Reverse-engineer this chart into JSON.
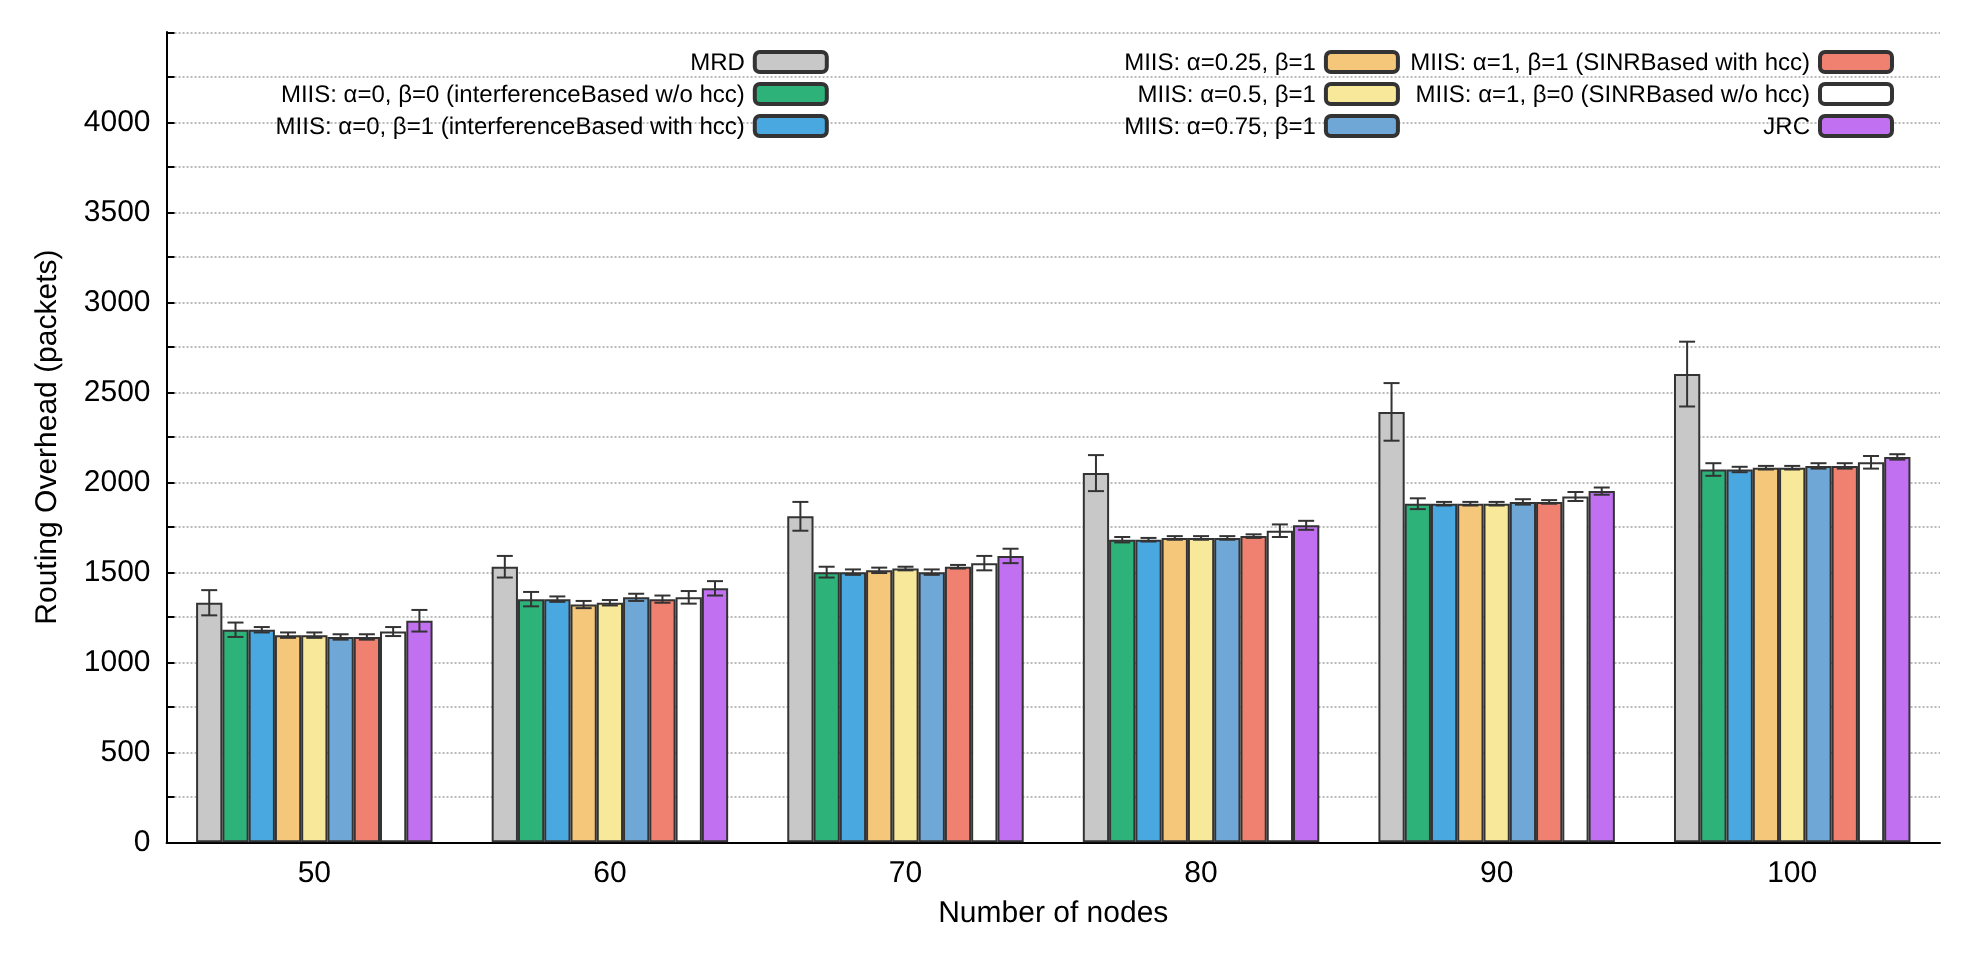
{
  "chart_data": {
    "type": "bar",
    "xlabel": "Number of nodes",
    "ylabel": "Routing Overhead (packets)",
    "categories": [
      "50",
      "60",
      "70",
      "80",
      "90",
      "100"
    ],
    "ylim": [
      0,
      4500
    ],
    "yticks": [
      0,
      {
        "value": 250,
        "label": null
      },
      500,
      {
        "value": 750,
        "label": null
      },
      1000,
      {
        "value": 1250,
        "label": null
      },
      1500,
      {
        "value": 1750,
        "label": null
      },
      2000,
      {
        "value": 2250,
        "label": null
      },
      2500,
      {
        "value": 2750,
        "label": null
      },
      3000,
      {
        "value": 3250,
        "label": null
      },
      3500,
      {
        "value": 3750,
        "label": null
      },
      4000,
      {
        "value": 4250,
        "label": null
      },
      {
        "value": 4500,
        "label": null
      }
    ],
    "grid": "y",
    "legend": "top",
    "series": [
      {
        "name": "MRD",
        "color": "#c8c8c8",
        "values": [
          1330,
          1530,
          1810,
          2050,
          2390,
          2600
        ],
        "errors": [
          70,
          60,
          80,
          100,
          160,
          180
        ]
      },
      {
        "name": "MIIS: α=0, β=0 (interferenceBased w/o hcc)",
        "color": "#2db37a",
        "values": [
          1180,
          1350,
          1500,
          1680,
          1880,
          2070
        ],
        "errors": [
          40,
          40,
          30,
          15,
          30,
          35
        ]
      },
      {
        "name": "MIIS: α=0, β=1 (interferenceBased with hcc)",
        "color": "#4aa8e0",
        "values": [
          1180,
          1350,
          1500,
          1680,
          1880,
          2070
        ],
        "errors": [
          15,
          15,
          15,
          10,
          10,
          15
        ]
      },
      {
        "name": "MIIS: α=0.25, β=1",
        "color": "#f5c77a",
        "values": [
          1150,
          1320,
          1510,
          1690,
          1880,
          2080
        ],
        "errors": [
          15,
          20,
          15,
          10,
          10,
          10
        ]
      },
      {
        "name": "MIIS: α=0.5, β=1",
        "color": "#f7e89a",
        "values": [
          1150,
          1330,
          1520,
          1690,
          1880,
          2080
        ],
        "errors": [
          15,
          15,
          10,
          10,
          10,
          10
        ]
      },
      {
        "name": "MIIS: α=0.75, β=1",
        "color": "#6fa8d6",
        "values": [
          1140,
          1360,
          1500,
          1690,
          1890,
          2090
        ],
        "errors": [
          15,
          20,
          15,
          10,
          15,
          15
        ]
      },
      {
        "name": "MIIS: α=1, β=1 (SINRBased with hcc)",
        "color": "#f08070",
        "values": [
          1140,
          1350,
          1530,
          1700,
          1890,
          2090
        ],
        "errors": [
          15,
          20,
          10,
          10,
          10,
          15
        ]
      },
      {
        "name": "MIIS: α=1, β=0 (SINRBased w/o hcc)",
        "color": "#ffffff",
        "values": [
          1170,
          1360,
          1550,
          1730,
          1920,
          2110
        ],
        "errors": [
          25,
          35,
          40,
          35,
          25,
          35
        ]
      },
      {
        "name": "JRC",
        "color": "#c070f0",
        "values": [
          1230,
          1410,
          1590,
          1760,
          1950,
          2140
        ],
        "errors": [
          60,
          40,
          40,
          25,
          20,
          15
        ]
      }
    ]
  }
}
